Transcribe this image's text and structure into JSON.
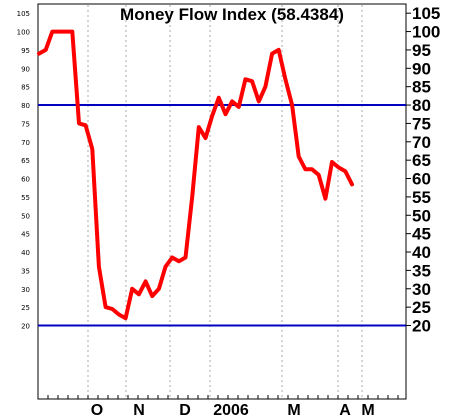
{
  "chart_data": {
    "type": "line",
    "title": "Money Flow Index (58.4384)",
    "xlabel": "",
    "ylabel": "",
    "ylim": [
      0,
      107.5
    ],
    "yticks": [
      20,
      25,
      30,
      35,
      40,
      45,
      50,
      55,
      60,
      65,
      70,
      75,
      80,
      85,
      90,
      95,
      100,
      105
    ],
    "xticks": [
      "O",
      "N",
      "D",
      "2006",
      "M",
      "A",
      "M"
    ],
    "reference_lines": [
      80,
      20
    ],
    "grid": "vertical dotted",
    "series": [
      {
        "color": "#ff0000",
        "values": [
          94,
          95,
          100,
          100,
          100,
          100,
          75,
          74.5,
          68,
          36,
          25,
          24.5,
          23,
          22,
          30,
          28.5,
          32,
          28,
          30,
          36,
          38.5,
          37.5,
          38.5,
          55,
          74,
          71,
          77,
          82,
          77.5,
          81,
          79.5,
          87,
          86.5,
          81,
          85,
          94,
          95,
          87,
          80,
          66,
          62.5,
          62.5,
          61,
          54.5,
          64.5,
          63,
          62,
          58.4
        ]
      }
    ]
  },
  "colors": {
    "line": "#ff0000",
    "reference": "#0000c0",
    "grid": "#aaaaaa"
  }
}
